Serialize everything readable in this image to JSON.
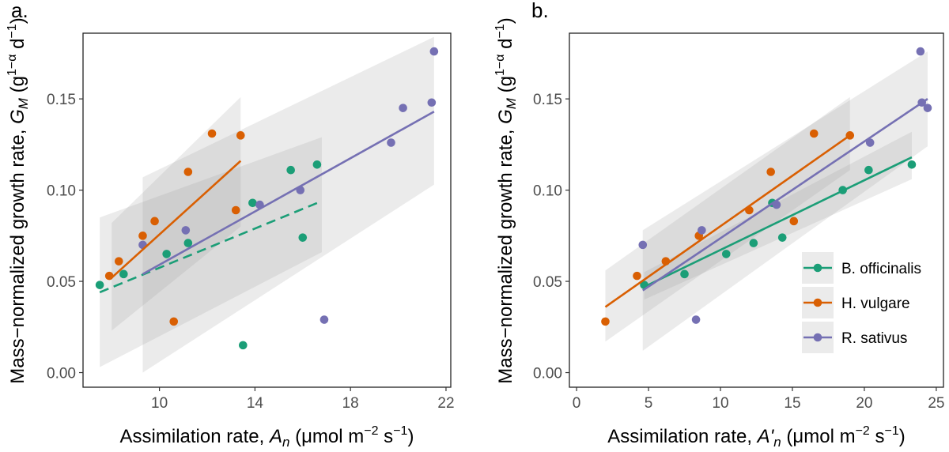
{
  "figure": {
    "legend": {
      "entries": [
        "B. officinalis",
        "H. vulgare",
        "R. sativus"
      ],
      "colors": [
        "#1b9e77",
        "#d95f02",
        "#7570b3"
      ]
    }
  },
  "chart_data": [
    {
      "type": "scatter",
      "panel_label": "a.",
      "xlabel_prefix": "Assimilation rate, ",
      "xlabel_var": "A",
      "xlabel_sub": "n",
      "xlabel_units": " (μmol  m",
      "xlabel_sup1": "−2",
      "xlabel_units2": " s",
      "xlabel_sup2": "−1",
      "xlabel_close": ")",
      "ylabel_prefix": "Mass−normalized growth rate, ",
      "ylabel_var": "G",
      "ylabel_sub": "M",
      "ylabel_units": " (g",
      "ylabel_sup1": "1−α",
      "ylabel_units2": " d",
      "ylabel_sup2": "−1",
      "ylabel_close": ")",
      "xlim": [
        6.8,
        22.2
      ],
      "ylim": [
        -0.008,
        0.186
      ],
      "xticks": [
        10,
        14,
        18,
        22
      ],
      "xtick_labels": [
        "10",
        "14",
        "18",
        "22"
      ],
      "yticks": [
        0.0,
        0.05,
        0.1,
        0.15
      ],
      "ytick_labels": [
        "0.00",
        "0.05",
        "0.10",
        "0.15"
      ],
      "series": [
        {
          "name": "B. officinalis",
          "color": "#1b9e77",
          "line_style": "dashed",
          "points": [
            [
              7.5,
              0.048
            ],
            [
              8.5,
              0.054
            ],
            [
              10.3,
              0.065
            ],
            [
              11.2,
              0.071
            ],
            [
              13.5,
              0.015
            ],
            [
              13.9,
              0.093
            ],
            [
              15.5,
              0.111
            ],
            [
              16.0,
              0.074
            ],
            [
              16.6,
              0.114
            ]
          ],
          "fit": {
            "x": [
              7.5,
              16.8
            ],
            "y": [
              0.044,
              0.094
            ]
          },
          "band": {
            "x": [
              7.5,
              16.8
            ],
            "lower": [
              0.003,
              0.066
            ],
            "upper": [
              0.085,
              0.129
            ]
          }
        },
        {
          "name": "H. vulgare",
          "color": "#d95f02",
          "line_style": "solid",
          "points": [
            [
              7.9,
              0.053
            ],
            [
              8.3,
              0.061
            ],
            [
              9.3,
              0.075
            ],
            [
              9.8,
              0.083
            ],
            [
              10.6,
              0.028
            ],
            [
              11.2,
              0.11
            ],
            [
              12.2,
              0.131
            ],
            [
              13.2,
              0.089
            ],
            [
              13.4,
              0.13
            ]
          ],
          "fit": {
            "x": [
              8.0,
              13.4
            ],
            "y": [
              0.052,
              0.116
            ]
          },
          "band": {
            "x": [
              8.0,
              13.4
            ],
            "lower": [
              0.023,
              0.08
            ],
            "upper": [
              0.082,
              0.151
            ]
          }
        },
        {
          "name": "R. sativus",
          "color": "#7570b3",
          "line_style": "solid",
          "points": [
            [
              9.3,
              0.07
            ],
            [
              11.1,
              0.078
            ],
            [
              14.2,
              0.092
            ],
            [
              15.9,
              0.1
            ],
            [
              16.9,
              0.029
            ],
            [
              19.7,
              0.126
            ],
            [
              20.2,
              0.145
            ],
            [
              21.4,
              0.148
            ],
            [
              21.5,
              0.176
            ]
          ],
          "fit": {
            "x": [
              9.3,
              21.5
            ],
            "y": [
              0.054,
              0.143
            ]
          },
          "band": {
            "x": [
              9.3,
              21.5
            ],
            "lower": [
              0.0,
              0.103
            ],
            "upper": [
              0.107,
              0.184
            ]
          }
        }
      ]
    },
    {
      "type": "scatter",
      "panel_label": "b.",
      "xlabel_prefix": "Assimilation rate, ",
      "xlabel_var": "A'",
      "xlabel_sub": "n",
      "xlabel_units": " (μmol  m",
      "xlabel_sup1": "−2",
      "xlabel_units2": " s",
      "xlabel_sup2": "−1",
      "xlabel_close": ")",
      "ylabel_prefix": "Mass−normalized growth rate, ",
      "ylabel_var": "G",
      "ylabel_sub": "M",
      "ylabel_units": " (g",
      "ylabel_sup1": "1−α",
      "ylabel_units2": " d",
      "ylabel_sup2": "−1",
      "ylabel_close": ")",
      "xlim": [
        -0.5,
        25.5
      ],
      "ylim": [
        -0.008,
        0.186
      ],
      "xticks": [
        0,
        5,
        10,
        15,
        20,
        25
      ],
      "xtick_labels": [
        "0",
        "5",
        "10",
        "15",
        "20",
        "25"
      ],
      "yticks": [
        0.0,
        0.05,
        0.1,
        0.15
      ],
      "ytick_labels": [
        "0.00",
        "0.05",
        "0.10",
        "0.15"
      ],
      "series": [
        {
          "name": "B. officinalis",
          "color": "#1b9e77",
          "line_style": "solid",
          "points": [
            [
              4.7,
              0.048
            ],
            [
              7.5,
              0.054
            ],
            [
              10.4,
              0.065
            ],
            [
              12.3,
              0.071
            ],
            [
              13.6,
              0.093
            ],
            [
              14.3,
              0.074
            ],
            [
              18.5,
              0.1
            ],
            [
              20.3,
              0.111
            ],
            [
              23.3,
              0.114
            ]
          ],
          "fit": {
            "x": [
              4.7,
              23.3
            ],
            "y": [
              0.047,
              0.118
            ]
          },
          "band": {
            "x": [
              4.7,
              23.3
            ],
            "lower": [
              0.04,
              0.106
            ],
            "upper": [
              0.055,
              0.132
            ]
          }
        },
        {
          "name": "H. vulgare",
          "color": "#d95f02",
          "line_style": "solid",
          "points": [
            [
              2.0,
              0.028
            ],
            [
              4.2,
              0.053
            ],
            [
              6.2,
              0.061
            ],
            [
              8.5,
              0.075
            ],
            [
              12.0,
              0.089
            ],
            [
              13.5,
              0.11
            ],
            [
              15.1,
              0.083
            ],
            [
              16.5,
              0.131
            ],
            [
              19.0,
              0.13
            ]
          ],
          "fit": {
            "x": [
              2.0,
              19.0
            ],
            "y": [
              0.036,
              0.13
            ]
          },
          "band": {
            "x": [
              2.0,
              19.0
            ],
            "lower": [
              0.017,
              0.111
            ],
            "upper": [
              0.056,
              0.151
            ]
          }
        },
        {
          "name": "R. sativus",
          "color": "#7570b3",
          "line_style": "solid",
          "points": [
            [
              4.6,
              0.07
            ],
            [
              8.3,
              0.029
            ],
            [
              8.7,
              0.078
            ],
            [
              13.9,
              0.092
            ],
            [
              20.4,
              0.126
            ],
            [
              23.9,
              0.176
            ],
            [
              24.0,
              0.148
            ],
            [
              24.4,
              0.145
            ]
          ],
          "fit": {
            "x": [
              4.6,
              24.4
            ],
            "y": [
              0.045,
              0.15
            ]
          },
          "band": {
            "x": [
              4.6,
              24.4
            ],
            "lower": [
              0.012,
              0.124
            ],
            "upper": [
              0.078,
              0.176
            ]
          }
        }
      ]
    }
  ]
}
